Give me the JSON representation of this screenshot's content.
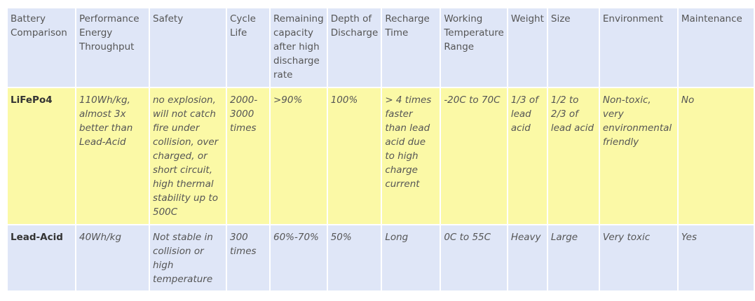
{
  "table": {
    "headers": [
      "Battery Comparison",
      "Performance Energy Throughput",
      "Safety",
      "Cycle Life",
      "Remaining capacity after high discharge rate",
      "Depth of Discharge",
      "Recharge Time",
      "Working Temperature Range",
      "Weight",
      "Size",
      "Environment",
      "Maintenance"
    ],
    "rows": [
      {
        "label": "LiFePo4",
        "cells": [
          "110Wh/kg, almost 3x better than Lead-Acid",
          "no explosion, will not catch fire under collision, over charged, or short circuit, high thermal stability up to 500C",
          "2000-3000 times",
          ">90%",
          "100%",
          "> 4 times faster than lead acid due to high charge current",
          "-20C to 70C",
          "1/3 of lead acid",
          "1/2 to 2/3 of lead acid",
          "Non-toxic, very environmental friendly",
          "No"
        ]
      },
      {
        "label": "Lead-Acid",
        "cells": [
          "40Wh/kg",
          "Not stable in collision or high temperature",
          "300 times",
          "60%-70%",
          "50%",
          "Long",
          "0C to 55C",
          "Heavy",
          "Large",
          "Very toxic",
          "Yes"
        ]
      }
    ]
  },
  "colors": {
    "header_bg": "#dfe6f7",
    "lifepo4_row_bg": "#fbf9a6",
    "leadacid_row_bg": "#dfe6f7",
    "text": "#555555"
  }
}
